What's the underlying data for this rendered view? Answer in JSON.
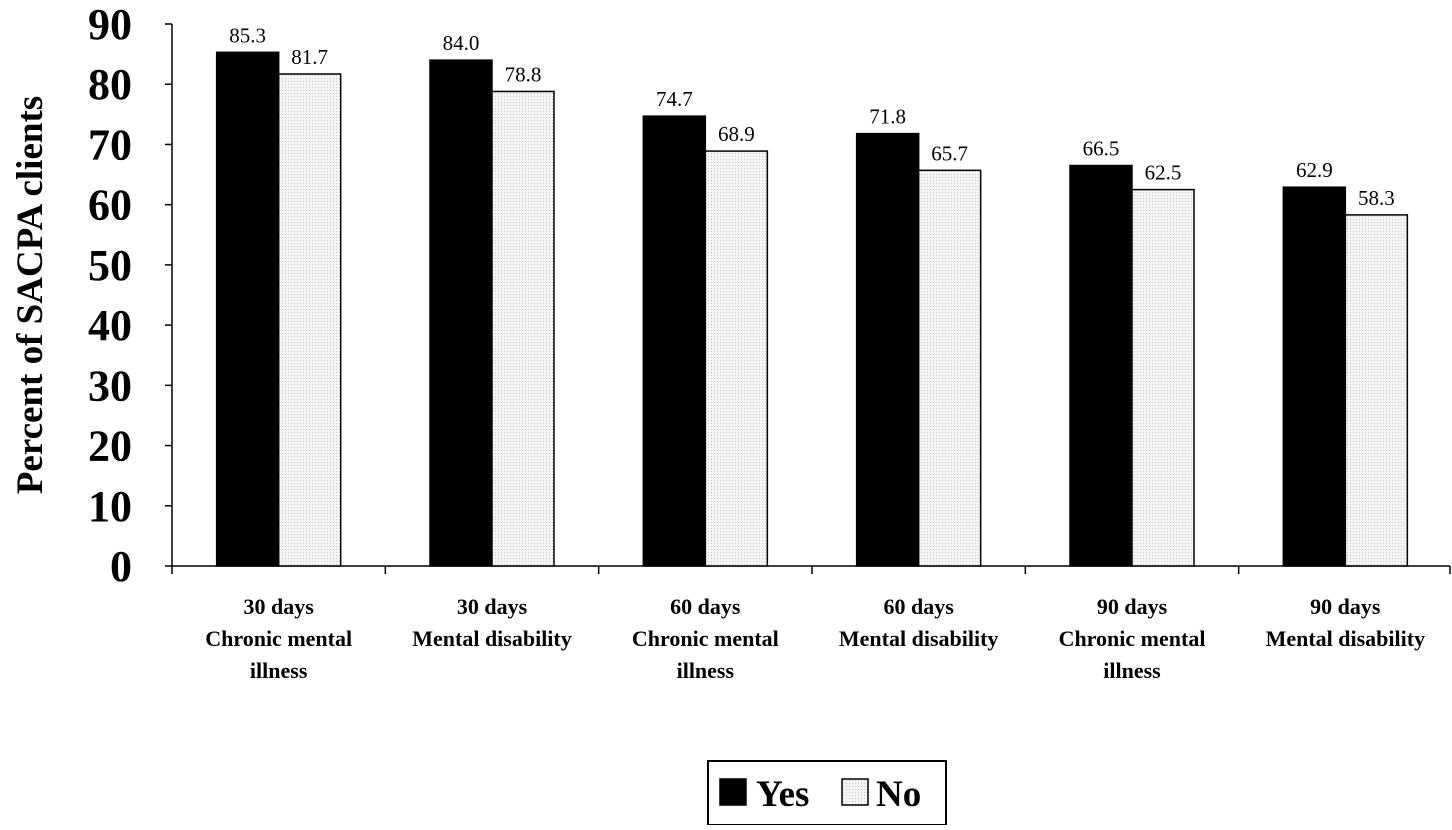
{
  "chart_data": {
    "type": "bar",
    "title": "",
    "xlabel": "",
    "ylabel": "Percent of SACPA clients",
    "ylim": [
      0,
      90
    ],
    "yticks": [
      "0",
      "10",
      "20",
      "30",
      "40",
      "50",
      "60",
      "70",
      "80",
      "90"
    ],
    "grid": false,
    "legend_position": "bottom-center",
    "categories": [
      [
        "30 days",
        "Chronic mental",
        "illness"
      ],
      [
        "30 days",
        "Mental disability"
      ],
      [
        "60 days",
        "Chronic mental",
        "illness"
      ],
      [
        "60 days",
        "Mental disability"
      ],
      [
        "90 days",
        "Chronic mental",
        "illness"
      ],
      [
        "90 days",
        "Mental disability"
      ]
    ],
    "series": [
      {
        "name": "Yes",
        "color": "#000000",
        "values": [
          85.3,
          84.0,
          74.7,
          71.8,
          66.5,
          62.9
        ],
        "labels": [
          "85.3",
          "84.0",
          "74.7",
          "71.8",
          "66.5",
          "62.9"
        ]
      },
      {
        "name": "No",
        "color": "#f0f0f0",
        "values": [
          81.7,
          78.8,
          68.9,
          65.7,
          62.5,
          58.3
        ],
        "labels": [
          "81.7",
          "78.8",
          "68.9",
          "65.7",
          "62.5",
          "58.3"
        ]
      }
    ]
  }
}
